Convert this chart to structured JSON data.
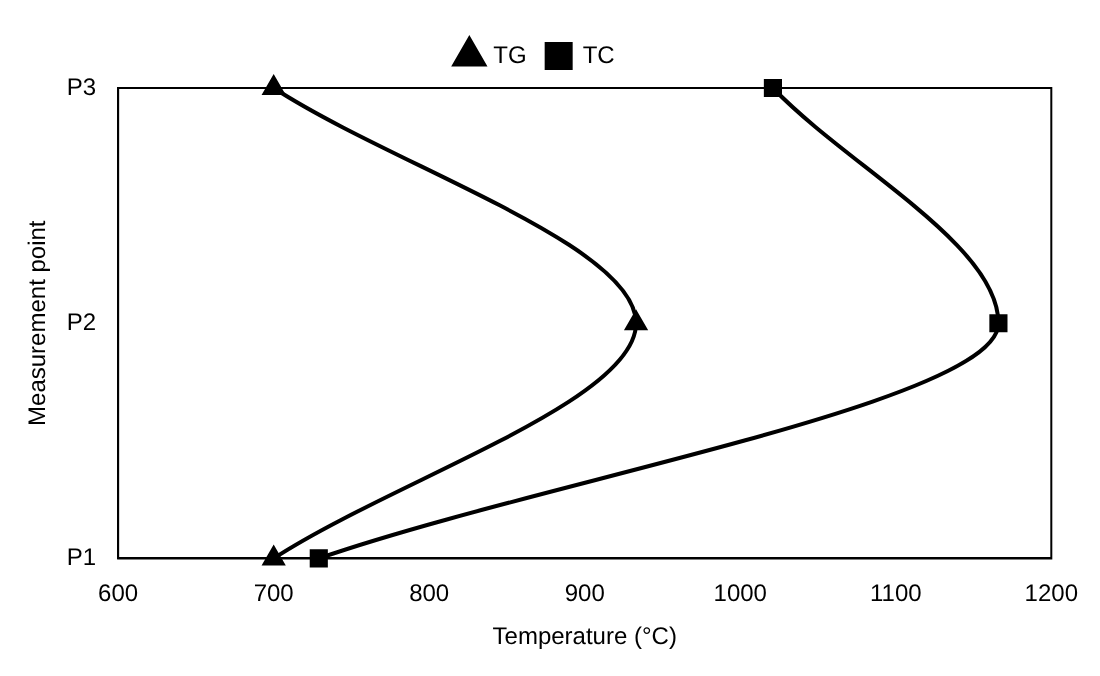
{
  "chart_data": {
    "type": "line",
    "orientation": "horizontal",
    "xlabel": "Temperature (°C)",
    "ylabel": "Measurement point",
    "categories": [
      "P3",
      "P2",
      "P1"
    ],
    "series": [
      {
        "name": "TG",
        "color": "#000000",
        "marker": "triangle",
        "values": [
          700,
          933,
          700
        ]
      },
      {
        "name": "TC",
        "color": "#000000",
        "marker": "square",
        "values": [
          1021,
          1166,
          729
        ]
      }
    ],
    "xlim": [
      600,
      1200
    ],
    "xticks": [
      600,
      700,
      800,
      900,
      1000,
      1100,
      1200
    ],
    "grid": false,
    "legend": "top",
    "line_style": "solid"
  }
}
